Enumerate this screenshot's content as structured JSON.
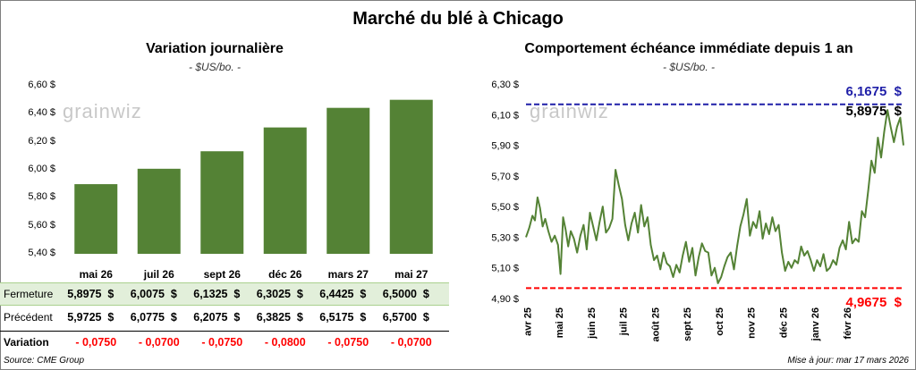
{
  "title": "Marché du blé à Chicago",
  "source": "Source: CME Group",
  "updated": "Mise à jour: mar 17 mars 2026",
  "watermark": "grainwiz",
  "colors": {
    "bar": "#548235",
    "line": "#548235",
    "high": "#1f1fa8",
    "low": "#ff0000",
    "neg": "#ff0000",
    "row_fill": "#e2efda",
    "row_border": "#a9d08e"
  },
  "left_chart": {
    "title": "Variation journalière",
    "subtitle": "- $US/bo. -",
    "rows": {
      "close_label": "Fermeture",
      "prev_label": "Précédent",
      "change_label": "Variation",
      "close": [
        "5,8975  $",
        "6,0075  $",
        "6,1325  $",
        "6,3025  $",
        "6,4425  $",
        "6,5000  $"
      ],
      "prev": [
        "5,9725  $",
        "6,0775  $",
        "6,2075  $",
        "6,3825  $",
        "6,5175  $",
        "6,5700  $"
      ],
      "change": [
        "- 0,0750",
        "- 0,0700",
        "- 0,0750",
        "- 0,0800",
        "- 0,0750",
        "- 0,0700"
      ]
    }
  },
  "right_chart": {
    "title": "Comportement échéance immédiate depuis 1 an",
    "subtitle": "- $US/bo. -",
    "high_label": "6,1675  $",
    "last_label": "5,8975  $",
    "low_label": "4,9675  $"
  },
  "chart_data": [
    {
      "type": "bar",
      "title": "Variation journalière",
      "categories": [
        "mai 26",
        "juil 26",
        "sept 26",
        "déc 26",
        "mars 27",
        "mai 27"
      ],
      "values": [
        5.8975,
        6.0075,
        6.1325,
        6.3025,
        6.4425,
        6.5
      ],
      "ylim": [
        5.4,
        6.6
      ],
      "yticks": [
        "5,40 $",
        "5,60 $",
        "5,80 $",
        "6,00 $",
        "6,20 $",
        "6,40 $",
        "6,60 $"
      ],
      "ytick_values": [
        5.4,
        5.6,
        5.8,
        6.0,
        6.2,
        6.4,
        6.6
      ],
      "grid": false
    },
    {
      "type": "line",
      "title": "Comportement échéance immédiate depuis 1 an",
      "x_labels": [
        "avr 25",
        "mai 25",
        "juin 25",
        "juil 25",
        "août 25",
        "sept 25",
        "oct 25",
        "nov 25",
        "déc 25",
        "janv 26",
        "févr 26"
      ],
      "ylim": [
        4.9,
        6.3
      ],
      "yticks": [
        "4,90 $",
        "5,10 $",
        "5,30 $",
        "5,50 $",
        "5,70 $",
        "5,90 $",
        "6,10 $",
        "6,30 $"
      ],
      "ytick_values": [
        4.9,
        5.1,
        5.3,
        5.5,
        5.7,
        5.9,
        6.1,
        6.3
      ],
      "high": 6.1675,
      "low": 4.9675,
      "last": 5.8975,
      "x_range": [
        0,
        11.8
      ],
      "series": [
        {
          "x": [
            0,
            0.1,
            0.2,
            0.28,
            0.36,
            0.44,
            0.52,
            0.6,
            0.7,
            0.8,
            0.9,
            1.0,
            1.08,
            1.16,
            1.24,
            1.32,
            1.4,
            1.5,
            1.6,
            1.7,
            1.8,
            1.9,
            2.0,
            2.1,
            2.2,
            2.3,
            2.4,
            2.5,
            2.6,
            2.7,
            2.8,
            2.9,
            3.0,
            3.1,
            3.2,
            3.3,
            3.4,
            3.5,
            3.6,
            3.7,
            3.8,
            3.9,
            4.0,
            4.1,
            4.2,
            4.3,
            4.4,
            4.5,
            4.6,
            4.7,
            4.8,
            4.9,
            5.0,
            5.1,
            5.2,
            5.3,
            5.4,
            5.5,
            5.6,
            5.7,
            5.8,
            5.9,
            6.0,
            6.1,
            6.2,
            6.3,
            6.4,
            6.5,
            6.6,
            6.7,
            6.8,
            6.9,
            7.0,
            7.1,
            7.2,
            7.3,
            7.4,
            7.5,
            7.6,
            7.7,
            7.8,
            7.9,
            8.0,
            8.1,
            8.2,
            8.3,
            8.4,
            8.5,
            8.6,
            8.7,
            8.8,
            8.9,
            9.0,
            9.1,
            9.2,
            9.3,
            9.4,
            9.5,
            9.6,
            9.7,
            9.8,
            9.9,
            10.0,
            10.1,
            10.2,
            10.3,
            10.4,
            10.5,
            10.6,
            10.7,
            10.8,
            10.9,
            11.0,
            11.1,
            11.2,
            11.3,
            11.4,
            11.5,
            11.6,
            11.7,
            11.8
          ],
          "y": [
            5.3,
            5.36,
            5.44,
            5.41,
            5.56,
            5.49,
            5.37,
            5.42,
            5.34,
            5.27,
            5.31,
            5.25,
            5.06,
            5.43,
            5.35,
            5.24,
            5.34,
            5.29,
            5.2,
            5.31,
            5.38,
            5.22,
            5.46,
            5.37,
            5.28,
            5.4,
            5.5,
            5.33,
            5.36,
            5.42,
            5.74,
            5.64,
            5.55,
            5.38,
            5.28,
            5.39,
            5.46,
            5.33,
            5.51,
            5.37,
            5.43,
            5.25,
            5.15,
            5.18,
            5.09,
            5.2,
            5.13,
            5.11,
            5.04,
            5.12,
            5.07,
            5.18,
            5.27,
            5.14,
            5.23,
            5.05,
            5.17,
            5.26,
            5.21,
            5.2,
            5.05,
            5.1,
            5.0,
            5.04,
            5.11,
            5.17,
            5.2,
            5.09,
            5.24,
            5.37,
            5.45,
            5.55,
            5.31,
            5.4,
            5.36,
            5.47,
            5.29,
            5.39,
            5.32,
            5.43,
            5.34,
            5.38,
            5.2,
            5.08,
            5.14,
            5.1,
            5.15,
            5.13,
            5.24,
            5.18,
            5.21,
            5.15,
            5.08,
            5.15,
            5.11,
            5.19,
            5.08,
            5.1,
            5.15,
            5.12,
            5.23,
            5.28,
            5.22,
            5.4,
            5.26,
            5.29,
            5.27,
            5.47,
            5.43,
            5.61,
            5.8,
            5.72,
            5.95,
            5.82,
            5.99,
            6.13,
            6.02,
            5.92,
            6.02,
            6.08,
            5.9
          ]
        }
      ]
    }
  ]
}
